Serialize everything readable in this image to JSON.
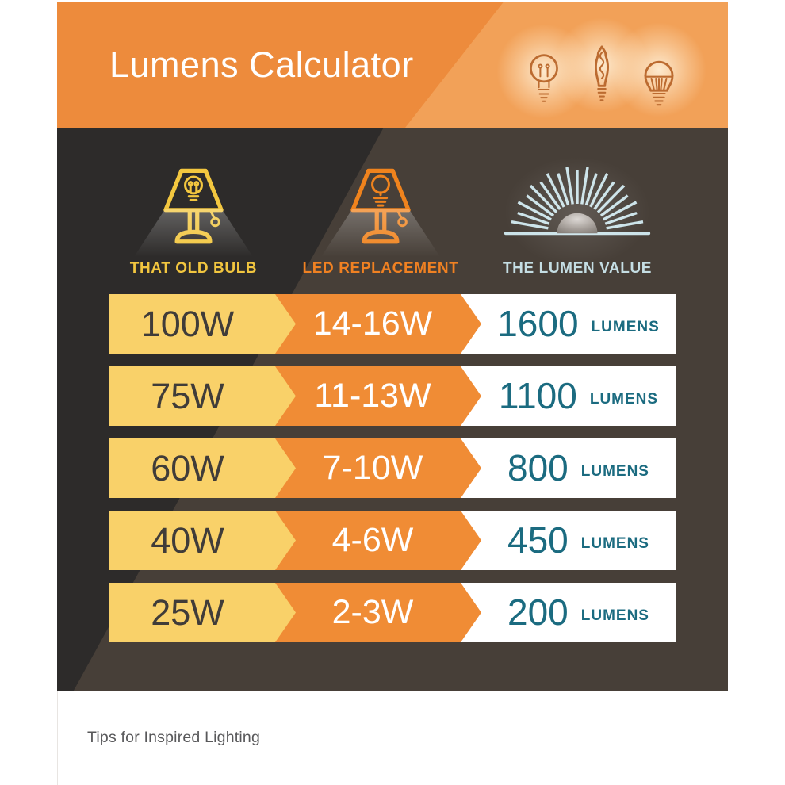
{
  "header": {
    "title": "Lumens Calculator",
    "icons": [
      "incandescent-bulb",
      "edison-bulb",
      "led-bulb"
    ]
  },
  "columns": [
    {
      "label": "THAT OLD BULB",
      "icon": "old-bulb-table-lamp"
    },
    {
      "label": "LED REPLACEMENT",
      "icon": "led-table-lamp"
    },
    {
      "label": "THE LUMEN VALUE",
      "icon": "sunburst"
    }
  ],
  "rows": [
    {
      "old": "100W",
      "led": "14-16W",
      "lumens": "1600",
      "unit": "LUMENS"
    },
    {
      "old": "75W",
      "led": "11-13W",
      "lumens": "1100",
      "unit": "LUMENS"
    },
    {
      "old": "60W",
      "led": "7-10W",
      "lumens": "800",
      "unit": "LUMENS"
    },
    {
      "old": "40W",
      "led": "4-6W",
      "lumens": "450",
      "unit": "LUMENS"
    },
    {
      "old": "25W",
      "led": "2-3W",
      "lumens": "200",
      "unit": "LUMENS"
    }
  ],
  "chart_data": {
    "type": "table",
    "columns": [
      "THAT OLD BULB",
      "LED REPLACEMENT",
      "THE LUMEN VALUE"
    ],
    "rows": [
      [
        "100W",
        "14-16W",
        "1600 LUMENS"
      ],
      [
        "75W",
        "11-13W",
        "1100 LUMENS"
      ],
      [
        "60W",
        "7-10W",
        "800 LUMENS"
      ],
      [
        "40W",
        "4-6W",
        "450 LUMENS"
      ],
      [
        "25W",
        "2-3W",
        "200 LUMENS"
      ]
    ]
  },
  "footer": {
    "text": "Tips for Inspired Lighting"
  },
  "colors": {
    "header_orange": "#ED8B3C",
    "header_orange_light": "#F2A158",
    "panel_dark": "#2D2B2A",
    "panel_light": "#473F38",
    "band_yellow": "#F9D169",
    "band_orange": "#F08C35",
    "teal": "#1B6B80",
    "yellow_accent": "#F2C63F",
    "orange_accent": "#F0831D",
    "light_blue": "#C5DEE4",
    "dark_text": "#403C39",
    "bulb_outline": "#BC6B30"
  }
}
